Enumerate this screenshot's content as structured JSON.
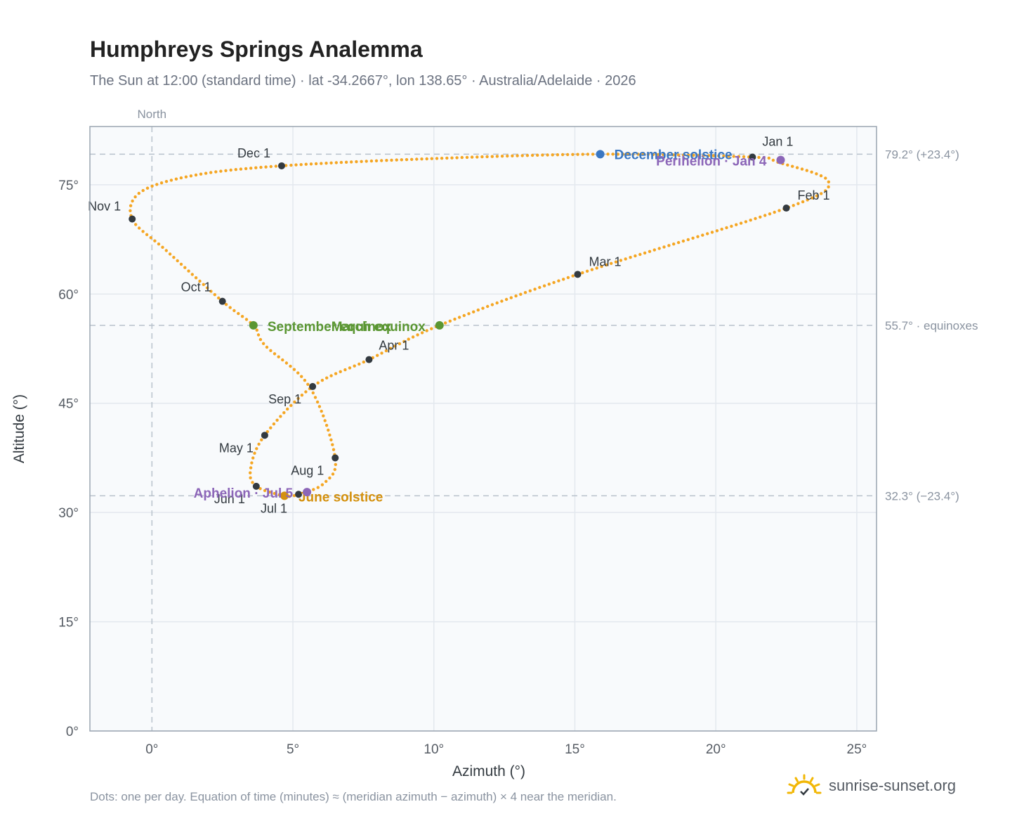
{
  "title": "Humphreys Springs Analemma",
  "subtitle": "The Sun at 12:00 (standard time) · lat -34.2667°, lon 138.65° · Australia/Adelaide · 2026",
  "footnote": "Dots: one per day. Equation of time (minutes) ≈ (meridian azimuth − azimuth) × 4 near the meridian.",
  "brand": {
    "text": "sunrise-sunset.org",
    "icon": "sun-logo-icon"
  },
  "colors": {
    "path": "#f5a623",
    "month": "#333a40",
    "december_solstice": "#3a77c2",
    "june_solstice": "#d4910e",
    "equinox": "#5a9632",
    "apsis": "#8c66b8",
    "plot_bg": "#f8fafc",
    "grid": "#e3e8ee",
    "ref_line": "#b8c2cc"
  },
  "chart_data": {
    "type": "scatter",
    "title": "Humphreys Springs Analemma",
    "xlabel": "Azimuth (°)",
    "ylabel": "Altitude (°)",
    "xlim": [
      -2.2,
      25.7
    ],
    "ylim": [
      0,
      83
    ],
    "x_ticks": [
      0,
      5,
      10,
      15,
      20,
      25
    ],
    "x_tick_labels": [
      "0°",
      "5°",
      "10°",
      "15°",
      "20°",
      "25°"
    ],
    "y_ticks": [
      0,
      15,
      30,
      45,
      60,
      75
    ],
    "y_tick_labels": [
      "0°",
      "15°",
      "30°",
      "45°",
      "60°",
      "75°"
    ],
    "grid": true,
    "north_line": {
      "x": 0,
      "label": "North"
    },
    "reference_lines": [
      {
        "y": 79.2,
        "label": "79.2° (+23.4°)"
      },
      {
        "y": 55.7,
        "label": "55.7° · equinoxes"
      },
      {
        "y": 32.3,
        "label": "32.3° (−23.4°)"
      }
    ],
    "path_anchors": [
      {
        "x": 22.2,
        "y": 78.1
      },
      {
        "x": 24.0,
        "y": 75.4
      },
      {
        "x": 22.5,
        "y": 71.8
      },
      {
        "x": 15.1,
        "y": 62.7
      },
      {
        "x": 10.2,
        "y": 55.7
      },
      {
        "x": 7.7,
        "y": 51.0
      },
      {
        "x": 5.7,
        "y": 47.3
      },
      {
        "x": 4.0,
        "y": 40.6
      },
      {
        "x": 3.5,
        "y": 36.0
      },
      {
        "x": 3.7,
        "y": 33.6
      },
      {
        "x": 4.7,
        "y": 32.3
      },
      {
        "x": 5.2,
        "y": 32.5
      },
      {
        "x": 6.1,
        "y": 34.0
      },
      {
        "x": 6.5,
        "y": 37.5
      },
      {
        "x": 5.6,
        "y": 47.2
      },
      {
        "x": 4.0,
        "y": 53.0
      },
      {
        "x": 3.6,
        "y": 55.7
      },
      {
        "x": 2.5,
        "y": 59.0
      },
      {
        "x": 0.5,
        "y": 66.0
      },
      {
        "x": -0.7,
        "y": 70.3
      },
      {
        "x": -0.4,
        "y": 74.0
      },
      {
        "x": 1.5,
        "y": 76.3
      },
      {
        "x": 4.6,
        "y": 77.6
      },
      {
        "x": 10.0,
        "y": 78.6
      },
      {
        "x": 15.9,
        "y": 79.2
      },
      {
        "x": 21.3,
        "y": 78.8
      }
    ],
    "month_markers": [
      {
        "label": "Jan 1",
        "x": 21.3,
        "y": 78.8
      },
      {
        "label": "Feb 1",
        "x": 22.5,
        "y": 71.8
      },
      {
        "label": "Mar 1",
        "x": 15.1,
        "y": 62.7
      },
      {
        "label": "Apr 1",
        "x": 7.7,
        "y": 51.0
      },
      {
        "label": "May 1",
        "x": 4.0,
        "y": 40.6
      },
      {
        "label": "Jun 1",
        "x": 3.7,
        "y": 33.6
      },
      {
        "label": "Jul 1",
        "x": 5.2,
        "y": 32.5
      },
      {
        "label": "Aug 1",
        "x": 6.5,
        "y": 37.5
      },
      {
        "label": "Sep 1",
        "x": 5.7,
        "y": 47.3
      },
      {
        "label": "Oct 1",
        "x": 2.5,
        "y": 59.0
      },
      {
        "label": "Nov 1",
        "x": -0.7,
        "y": 70.3
      },
      {
        "label": "Dec 1",
        "x": 4.6,
        "y": 77.6
      }
    ],
    "events": [
      {
        "label": "December solstice",
        "x": 15.9,
        "y": 79.2,
        "color": "#3a77c2"
      },
      {
        "label": "Perihelion · Jan 4",
        "x": 22.3,
        "y": 78.4,
        "color": "#8c66b8"
      },
      {
        "label": "March equinox",
        "x": 10.2,
        "y": 55.7,
        "color": "#5a9632"
      },
      {
        "label": "September equinox",
        "x": 3.6,
        "y": 55.7,
        "color": "#5a9632"
      },
      {
        "label": "June solstice",
        "x": 4.7,
        "y": 32.3,
        "color": "#d4910e"
      },
      {
        "label": "Aphelion · Jul 5",
        "x": 5.5,
        "y": 32.8,
        "color": "#8c66b8"
      }
    ]
  }
}
